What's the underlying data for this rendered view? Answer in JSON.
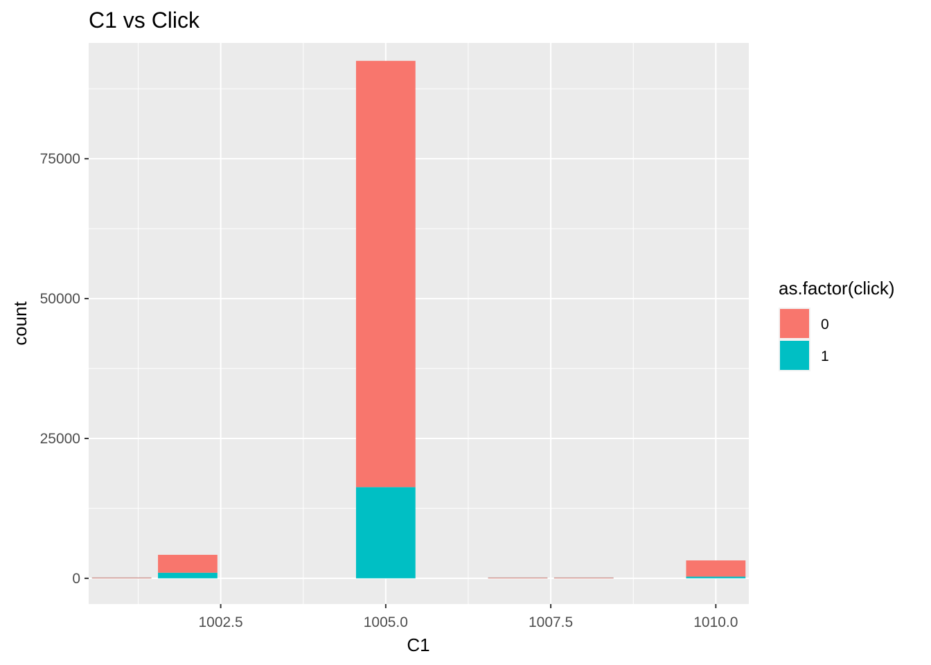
{
  "chart_data": {
    "type": "bar",
    "subtype": "stacked-histogram",
    "title": "C1 vs Click",
    "xlabel": "C1",
    "ylabel": "count",
    "xlim": [
      1000.5,
      1010.5
    ],
    "ylim": [
      -4600,
      95700
    ],
    "x_ticks": [
      {
        "value": 1002.5,
        "label": "1002.5"
      },
      {
        "value": 1005.0,
        "label": "1005.0"
      },
      {
        "value": 1007.5,
        "label": "1007.5"
      },
      {
        "value": 1010.0,
        "label": "1010.0"
      }
    ],
    "y_ticks": [
      {
        "value": 0,
        "label": "0"
      },
      {
        "value": 25000,
        "label": "25000"
      },
      {
        "value": 50000,
        "label": "50000"
      },
      {
        "value": 75000,
        "label": "75000"
      }
    ],
    "x_minor": [
      1001.25,
      1003.75,
      1006.25,
      1008.75
    ],
    "y_minor": [
      12500,
      37500,
      62500,
      87500
    ],
    "bin_width": 0.9,
    "bins": [
      {
        "center": 1001.0,
        "counts": {
          "0": 40,
          "1": 10
        }
      },
      {
        "center": 1002.0,
        "counts": {
          "0": 3200,
          "1": 1000
        }
      },
      {
        "center": 1005.0,
        "counts": {
          "0": 76200,
          "1": 16300
        }
      },
      {
        "center": 1007.0,
        "counts": {
          "0": 80,
          "1": 5
        }
      },
      {
        "center": 1008.0,
        "counts": {
          "0": 80,
          "1": 5
        }
      },
      {
        "center": 1010.0,
        "counts": {
          "0": 2900,
          "1": 300
        }
      }
    ],
    "series": [
      {
        "name": "0",
        "color": "#F8766D"
      },
      {
        "name": "1",
        "color": "#00BFC4"
      }
    ],
    "legend": {
      "title": "as.factor(click)",
      "position": "right"
    },
    "panel_background": "#EBEBEB",
    "grid_color": "#FFFFFF",
    "grid": true
  }
}
